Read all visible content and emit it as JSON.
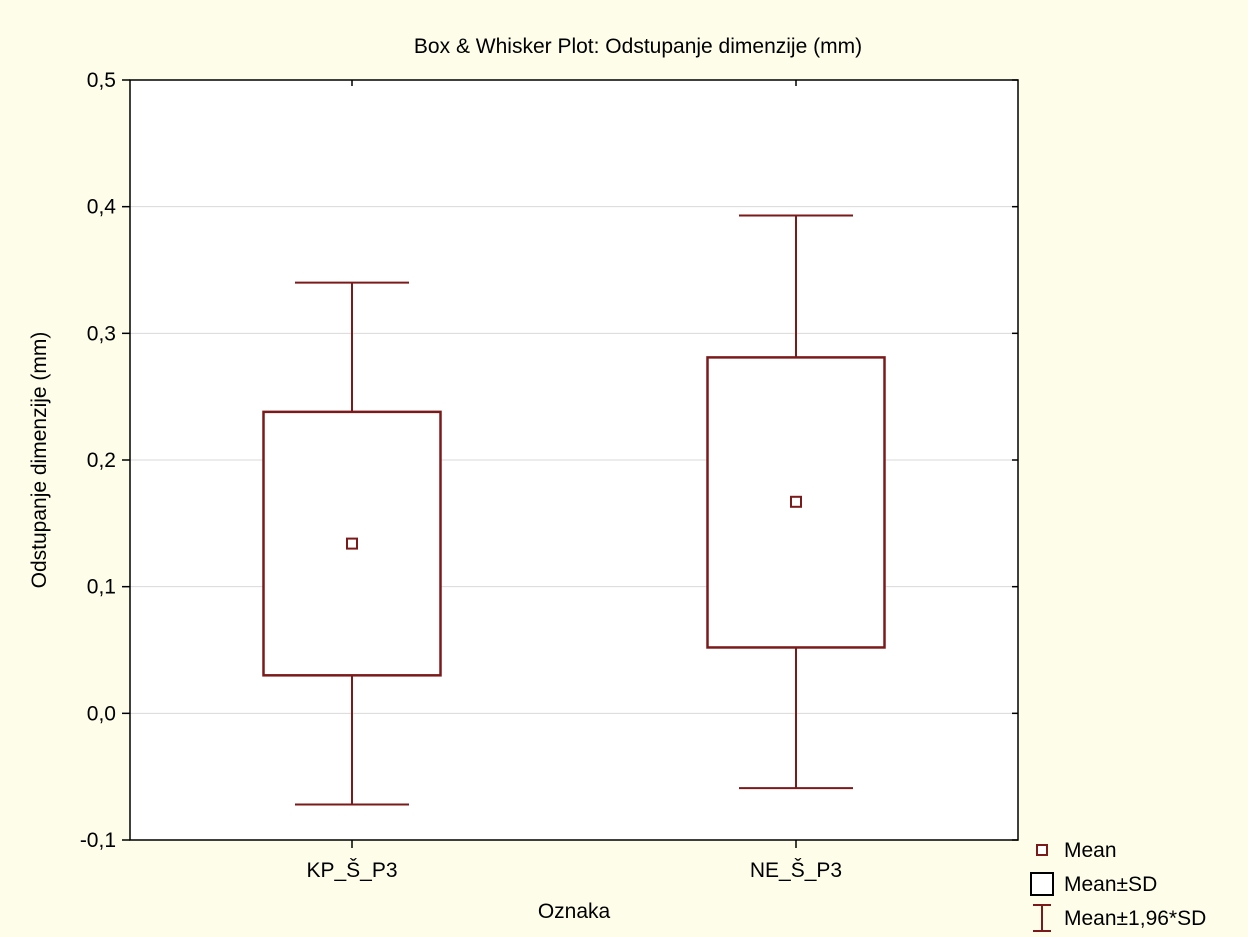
{
  "chart_data": {
    "type": "boxplot",
    "title": "Box & Whisker Plot: Odstupanje dimenzije (mm)",
    "xlabel": "Oznaka",
    "ylabel": "Odstupanje dimenzije (mm)",
    "ylim": [
      -0.1,
      0.5
    ],
    "yticks": [
      -0.1,
      0.0,
      0.1,
      0.2,
      0.3,
      0.4,
      0.5
    ],
    "ytick_labels": [
      "-0,1",
      "0,0",
      "0,1",
      "0,2",
      "0,3",
      "0,4",
      "0,5"
    ],
    "grid": true,
    "legend_position": "bottom-right",
    "colors": {
      "series": "#7a1a1a",
      "plot_bg": "#ffffff",
      "page_bg": "#fdfde9",
      "grid": "#d9d9d9"
    },
    "categories": [
      "KP_Š_P3",
      "NE_Š_P3"
    ],
    "boxes": [
      {
        "category": "KP_Š_P3",
        "mean": 0.134,
        "box_low": 0.03,
        "box_high": 0.238,
        "whisker_low": -0.072,
        "whisker_high": 0.34
      },
      {
        "category": "NE_Š_P3",
        "mean": 0.167,
        "box_low": 0.052,
        "box_high": 0.281,
        "whisker_low": -0.059,
        "whisker_high": 0.393
      }
    ],
    "legend": [
      {
        "symbol": "point",
        "label": "Mean"
      },
      {
        "symbol": "box",
        "label": "Mean±SD"
      },
      {
        "symbol": "whisker",
        "label": "Mean±1,96*SD"
      }
    ]
  }
}
